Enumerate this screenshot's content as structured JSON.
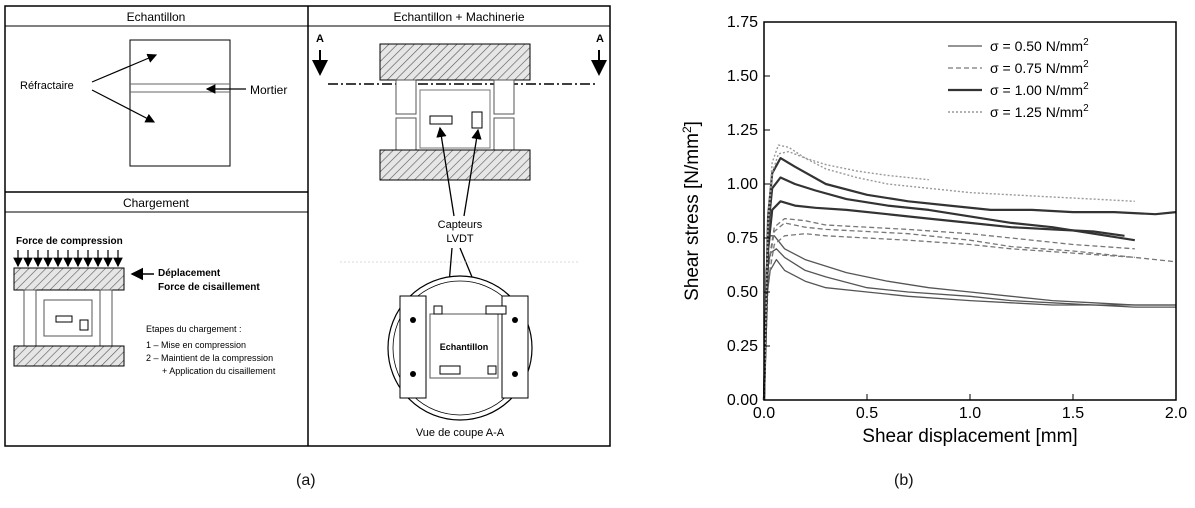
{
  "figure_a": {
    "caption": "(a)",
    "panel_echantillon": {
      "title": "Echantillon",
      "label_refractaire": "Réfractaire",
      "label_mortier": "Mortier"
    },
    "panel_chargement": {
      "title": "Chargement",
      "label_force_compression": "Force de compression",
      "label_deplacement": "Déplacement",
      "label_force_cisaillement": "Force de cisaillement",
      "steps_title": "Etapes du chargement :",
      "step_1": "1 – Mise en compression",
      "step_2": "2 – Maintient de la compression",
      "step_2b": "+ Application du cisaillement"
    },
    "panel_machinerie": {
      "title": "Echantillon + Machinerie",
      "section_mark_left": "A",
      "section_mark_right": "A",
      "label_capteurs_1": "Capteurs",
      "label_capteurs_2": "LVDT",
      "label_echantillon": "Echantillon",
      "label_vue_coupe": "Vue de coupe A-A"
    }
  },
  "figure_b": {
    "caption": "(b)"
  },
  "chart_data": {
    "type": "line",
    "xlabel": "Shear displacement [mm]",
    "ylabel_main": "Shear stress [N/mm",
    "ylabel_sup": "2",
    "ylabel_end": "]",
    "xlim": [
      0.0,
      2.0
    ],
    "ylim": [
      0.0,
      1.75
    ],
    "xticks": [
      "0.0",
      "0.5",
      "1.0",
      "1.5",
      "2.0"
    ],
    "yticks": [
      "0.00",
      "0.25",
      "0.50",
      "0.75",
      "1.00",
      "1.25",
      "1.50",
      "1.75"
    ],
    "legend_position": "top-right",
    "legend": [
      {
        "label": "σ = 0.50 N/mm",
        "sup": "2",
        "style": "solid-thin"
      },
      {
        "label": "σ = 0.75 N/mm",
        "sup": "2",
        "style": "dashed"
      },
      {
        "label": "σ = 1.00 N/mm",
        "sup": "2",
        "style": "solid-thick"
      },
      {
        "label": "σ = 1.25 N/mm",
        "sup": "2",
        "style": "dotted"
      }
    ],
    "series": [
      {
        "style": "solid-thin",
        "x": [
          0,
          0.01,
          0.03,
          0.06,
          0.1,
          0.2,
          0.3,
          0.5,
          0.7,
          1.0,
          1.2,
          1.4,
          1.6,
          1.8,
          2.0
        ],
        "y": [
          0,
          0.45,
          0.6,
          0.65,
          0.6,
          0.55,
          0.52,
          0.5,
          0.48,
          0.46,
          0.45,
          0.44,
          0.44,
          0.43,
          0.43
        ]
      },
      {
        "style": "solid-thin",
        "x": [
          0,
          0.01,
          0.03,
          0.06,
          0.1,
          0.2,
          0.3,
          0.5,
          0.7,
          1.0,
          1.2,
          1.4,
          1.6,
          1.8,
          2.0
        ],
        "y": [
          0,
          0.55,
          0.68,
          0.7,
          0.66,
          0.6,
          0.57,
          0.52,
          0.5,
          0.48,
          0.46,
          0.45,
          0.44,
          0.44,
          0.44
        ]
      },
      {
        "style": "solid-thin",
        "x": [
          0,
          0.01,
          0.03,
          0.05,
          0.1,
          0.2,
          0.4,
          0.6,
          0.8,
          1.0,
          1.2,
          1.4,
          1.6,
          1.8,
          2.0
        ],
        "y": [
          0,
          0.6,
          0.76,
          0.76,
          0.7,
          0.65,
          0.59,
          0.55,
          0.52,
          0.5,
          0.48,
          0.46,
          0.45,
          0.44,
          0.44
        ]
      },
      {
        "style": "dashed",
        "x": [
          0,
          0.02,
          0.05,
          0.1,
          0.2,
          0.3,
          0.5,
          0.7,
          1.0,
          1.2,
          1.5,
          1.8
        ],
        "y": [
          0,
          0.55,
          0.72,
          0.76,
          0.77,
          0.76,
          0.75,
          0.74,
          0.72,
          0.7,
          0.68,
          0.66
        ]
      },
      {
        "style": "dashed",
        "x": [
          0,
          0.02,
          0.05,
          0.1,
          0.2,
          0.3,
          0.5,
          0.7,
          1.0,
          1.2,
          1.5,
          1.8,
          2.0
        ],
        "y": [
          0,
          0.6,
          0.78,
          0.82,
          0.8,
          0.79,
          0.78,
          0.77,
          0.74,
          0.71,
          0.69,
          0.66,
          0.64
        ]
      },
      {
        "style": "dashed",
        "x": [
          0,
          0.02,
          0.05,
          0.1,
          0.2,
          0.3,
          0.5,
          0.7,
          1.0,
          1.2,
          1.5,
          1.8
        ],
        "y": [
          0,
          0.62,
          0.8,
          0.84,
          0.83,
          0.81,
          0.8,
          0.79,
          0.77,
          0.75,
          0.72,
          0.7
        ]
      },
      {
        "style": "solid-thick",
        "x": [
          0,
          0.02,
          0.04,
          0.08,
          0.15,
          0.25,
          0.4,
          0.6,
          0.8,
          1.0,
          1.2,
          1.4,
          1.6,
          1.75
        ],
        "y": [
          0,
          0.7,
          0.88,
          0.92,
          0.9,
          0.89,
          0.88,
          0.86,
          0.84,
          0.82,
          0.8,
          0.79,
          0.78,
          0.76
        ]
      },
      {
        "style": "solid-thick",
        "x": [
          0,
          0.02,
          0.04,
          0.08,
          0.15,
          0.25,
          0.4,
          0.6,
          0.8,
          1.0,
          1.2,
          1.4,
          1.6,
          1.8
        ],
        "y": [
          0,
          0.8,
          0.98,
          1.03,
          1.0,
          0.97,
          0.93,
          0.9,
          0.88,
          0.85,
          0.82,
          0.8,
          0.77,
          0.74
        ]
      },
      {
        "style": "solid-thick",
        "x": [
          0,
          0.02,
          0.04,
          0.08,
          0.15,
          0.3,
          0.5,
          0.7,
          0.9,
          1.1,
          1.3,
          1.5,
          1.7,
          1.9,
          2.0
        ],
        "y": [
          0,
          0.85,
          1.05,
          1.12,
          1.08,
          1.0,
          0.95,
          0.92,
          0.9,
          0.88,
          0.88,
          0.87,
          0.87,
          0.86,
          0.87
        ]
      },
      {
        "style": "dotted",
        "x": [
          0,
          0.02,
          0.04,
          0.07,
          0.12,
          0.2,
          0.3,
          0.45,
          0.6,
          0.8,
          1.0,
          1.2,
          1.4,
          1.6,
          1.8
        ],
        "y": [
          0,
          0.85,
          1.1,
          1.18,
          1.17,
          1.12,
          1.07,
          1.03,
          1.0,
          0.98,
          0.96,
          0.95,
          0.94,
          0.93,
          0.92
        ]
      },
      {
        "style": "dotted",
        "x": [
          0,
          0.02,
          0.04,
          0.07,
          0.12,
          0.2,
          0.3,
          0.45,
          0.6,
          0.8
        ],
        "y": [
          0,
          0.8,
          1.05,
          1.14,
          1.15,
          1.12,
          1.09,
          1.06,
          1.04,
          1.02
        ]
      }
    ]
  }
}
